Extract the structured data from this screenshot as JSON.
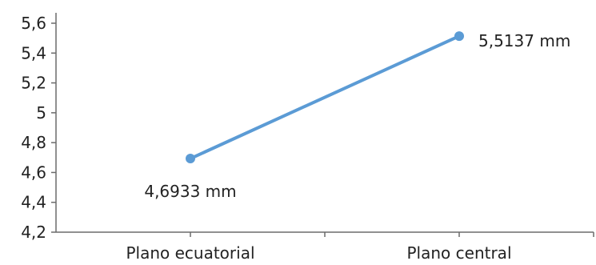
{
  "chart_data": {
    "type": "line",
    "categories": [
      "Plano ecuatorial",
      "Plano central"
    ],
    "series": [
      {
        "values": [
          4.6933,
          5.5137
        ],
        "labels": [
          "4,6933 mm",
          "5,5137 mm"
        ],
        "color": "#5b9bd5"
      }
    ],
    "y_ticks": [
      "4,2",
      "4,4",
      "4,6",
      "4,8",
      "5",
      "5,2",
      "5,4",
      "5,6"
    ],
    "ylim": [
      4.2,
      5.6
    ],
    "grid": false,
    "legend": "none"
  }
}
